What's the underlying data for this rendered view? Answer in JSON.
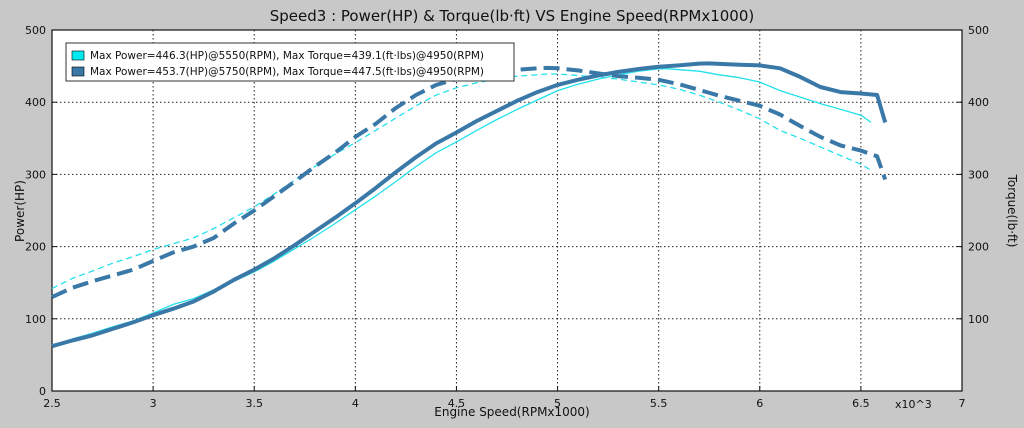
{
  "chart_data": {
    "type": "line",
    "title": "Speed3 : Power(HP) & Torque(lb·ft) VS Engine Speed(RPMx1000)",
    "xlabel": "Engine Speed(RPMx1000)",
    "ylabel": "Power(HP)",
    "y2label": "Torque(lb·ft)",
    "x_multiplier_label": "x10^3",
    "xlim": [
      2.5,
      7
    ],
    "ylim": [
      0,
      500
    ],
    "y2lim": [
      0,
      500
    ],
    "x_ticks": [
      "2.5",
      "3",
      "3.5",
      "4",
      "4.5",
      "5",
      "5.5",
      "6",
      "6.5",
      "7"
    ],
    "y_ticks": [
      "0",
      "100",
      "200",
      "300",
      "400",
      "500"
    ],
    "y2_ticks": [
      "100",
      "200",
      "300",
      "400",
      "500"
    ],
    "grid": true,
    "legend_position": "top-left",
    "legend": [
      {
        "label": "Max Power=446.3(HP)@5550(RPM), Max Torque=439.1(ft·lbs)@4950(RPM)",
        "color": "#00e8f0"
      },
      {
        "label": "Max Power=453.7(HP)@5750(RPM), Max Torque=447.5(ft·lbs)@4950(RPM)",
        "color": "#3a78a8"
      }
    ],
    "series": [
      {
        "kind": "power",
        "run": 1,
        "color": "#22e0ec",
        "style": "solid",
        "width": 1.3,
        "x": [
          2.5,
          2.6,
          2.7,
          2.8,
          2.9,
          3.0,
          3.1,
          3.2,
          3.3,
          3.4,
          3.5,
          3.6,
          3.7,
          3.8,
          3.9,
          4.0,
          4.1,
          4.2,
          4.3,
          4.4,
          4.5,
          4.6,
          4.7,
          4.8,
          4.9,
          5.0,
          5.1,
          5.2,
          5.3,
          5.4,
          5.5,
          5.55,
          5.6,
          5.7,
          5.8,
          5.9,
          6.0,
          6.1,
          6.2,
          6.3,
          6.4,
          6.5,
          6.55
        ],
        "y": [
          62,
          72,
          80,
          89,
          97,
          108,
          120,
          128,
          140,
          152,
          165,
          180,
          197,
          214,
          232,
          251,
          270,
          290,
          311,
          330,
          345,
          361,
          376,
          390,
          403,
          416,
          425,
          432,
          438,
          443,
          446.3,
          446.3,
          445,
          443,
          438,
          434,
          428,
          416,
          407,
          398,
          390,
          382,
          372
        ]
      },
      {
        "kind": "torque",
        "run": 1,
        "color": "#22e0ec",
        "style": "dashed",
        "width": 1.3,
        "x": [
          2.5,
          2.6,
          2.7,
          2.8,
          2.9,
          3.0,
          3.1,
          3.2,
          3.3,
          3.4,
          3.5,
          3.6,
          3.7,
          3.8,
          3.9,
          4.0,
          4.1,
          4.2,
          4.3,
          4.4,
          4.5,
          4.6,
          4.7,
          4.8,
          4.9,
          4.95,
          5.0,
          5.1,
          5.2,
          5.3,
          5.4,
          5.5,
          5.6,
          5.7,
          5.8,
          5.9,
          6.0,
          6.1,
          6.2,
          6.3,
          6.4,
          6.5,
          6.55
        ],
        "y": [
          142,
          156,
          166,
          177,
          186,
          196,
          204,
          212,
          225,
          240,
          255,
          273,
          292,
          311,
          328,
          344,
          361,
          378,
          395,
          410,
          420,
          427,
          432,
          436,
          438,
          439.1,
          439,
          437,
          435,
          432,
          428,
          424,
          418,
          410,
          400,
          389,
          377,
          361,
          350,
          338,
          326,
          314,
          306
        ]
      },
      {
        "kind": "power",
        "run": 2,
        "color": "#3a78a8",
        "style": "solid",
        "width": 4,
        "x": [
          2.5,
          2.6,
          2.7,
          2.8,
          2.9,
          3.0,
          3.1,
          3.2,
          3.3,
          3.4,
          3.5,
          3.6,
          3.7,
          3.8,
          3.9,
          4.0,
          4.1,
          4.2,
          4.3,
          4.4,
          4.5,
          4.6,
          4.7,
          4.8,
          4.9,
          5.0,
          5.1,
          5.2,
          5.3,
          5.4,
          5.5,
          5.6,
          5.7,
          5.75,
          5.8,
          5.9,
          6.0,
          6.1,
          6.2,
          6.3,
          6.4,
          6.5,
          6.58,
          6.62
        ],
        "y": [
          62,
          70,
          77,
          86,
          95,
          105,
          114,
          124,
          138,
          154,
          168,
          184,
          202,
          221,
          240,
          260,
          281,
          303,
          324,
          343,
          358,
          374,
          388,
          402,
          414,
          424,
          431,
          437,
          442,
          446,
          449,
          451,
          453.5,
          453.7,
          453,
          452,
          451,
          447,
          435,
          421,
          414,
          412,
          410,
          372
        ]
      },
      {
        "kind": "torque",
        "run": 2,
        "color": "#3a78a8",
        "style": "dashed",
        "width": 4,
        "x": [
          2.5,
          2.6,
          2.7,
          2.8,
          2.9,
          3.0,
          3.1,
          3.2,
          3.3,
          3.4,
          3.5,
          3.6,
          3.7,
          3.8,
          3.9,
          4.0,
          4.1,
          4.2,
          4.3,
          4.4,
          4.5,
          4.6,
          4.7,
          4.8,
          4.9,
          4.95,
          5.0,
          5.1,
          5.2,
          5.3,
          5.4,
          5.5,
          5.6,
          5.7,
          5.8,
          5.9,
          6.0,
          6.1,
          6.2,
          6.3,
          6.4,
          6.5,
          6.58,
          6.62
        ],
        "y": [
          130,
          143,
          152,
          160,
          168,
          180,
          192,
          200,
          212,
          232,
          250,
          270,
          290,
          311,
          330,
          352,
          370,
          392,
          410,
          424,
          432,
          438,
          442,
          445,
          447,
          447.5,
          447,
          444,
          440,
          436,
          434,
          431,
          425,
          417,
          409,
          402,
          395,
          383,
          367,
          352,
          340,
          333,
          325,
          293
        ]
      }
    ]
  }
}
